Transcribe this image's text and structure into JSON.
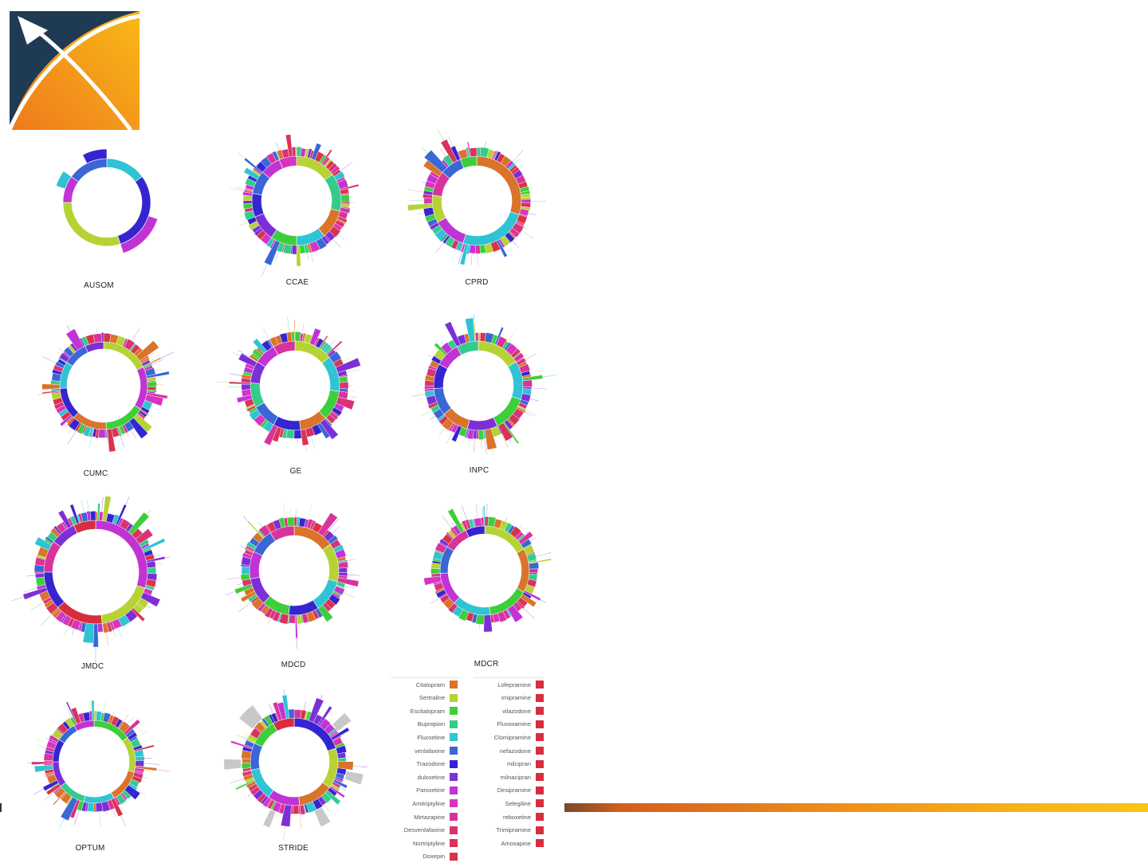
{
  "logo": {
    "name": "logo-icon",
    "colors": {
      "navy": "#1f3a53",
      "orange": "#ee8c1d",
      "yellow": "#f9b917"
    }
  },
  "chart_data": {
    "type": "sunburst",
    "title": "",
    "panels": [
      {
        "name": "AUSOM",
        "inner": [
          {
            "drug": "Fluoxetine",
            "value": 15
          },
          {
            "drug": "Trazodone",
            "value": 30
          },
          {
            "drug": "Sertraline",
            "value": 30
          },
          {
            "drug": "Paroxetine",
            "value": 10
          },
          {
            "drug": "venlafaxine",
            "value": 15
          }
        ]
      },
      {
        "name": "CCAE",
        "inner": [
          {
            "drug": "Sertraline",
            "value": 14
          },
          {
            "drug": "Bupropion",
            "value": 13
          },
          {
            "drug": "Citalopram",
            "value": 10
          },
          {
            "drug": "Fluoxetine",
            "value": 10
          },
          {
            "drug": "Escitalopram",
            "value": 9
          },
          {
            "drug": "duloxetine",
            "value": 9
          },
          {
            "drug": "Trazodone",
            "value": 8
          },
          {
            "drug": "venlafaxine",
            "value": 8
          },
          {
            "drug": "Paroxetine",
            "value": 7
          },
          {
            "drug": "Amitriptyline",
            "value": 6
          }
        ]
      },
      {
        "name": "CPRD",
        "inner": [
          {
            "drug": "Citalopram",
            "value": 30
          },
          {
            "drug": "Fluoxetine",
            "value": 25
          },
          {
            "drug": "Paroxetine",
            "value": 12
          },
          {
            "drug": "Sertraline",
            "value": 10
          },
          {
            "drug": "Mirtazapine",
            "value": 9
          },
          {
            "drug": "venlafaxine",
            "value": 8
          },
          {
            "drug": "Escitalopram",
            "value": 6
          }
        ]
      },
      {
        "name": "CUMC",
        "inner": [
          {
            "drug": "Sertraline",
            "value": 18
          },
          {
            "drug": "Paroxetine",
            "value": 16
          },
          {
            "drug": "Escitalopram",
            "value": 15
          },
          {
            "drug": "Citalopram",
            "value": 13
          },
          {
            "drug": "Trazodone",
            "value": 12
          },
          {
            "drug": "Fluoxetine",
            "value": 10
          },
          {
            "drug": "venlafaxine",
            "value": 9
          },
          {
            "drug": "duloxetine",
            "value": 7
          }
        ]
      },
      {
        "name": "GE",
        "inner": [
          {
            "drug": "Sertraline",
            "value": 14
          },
          {
            "drug": "Fluoxetine",
            "value": 13
          },
          {
            "drug": "Escitalopram",
            "value": 11
          },
          {
            "drug": "Citalopram",
            "value": 10
          },
          {
            "drug": "Trazodone",
            "value": 10
          },
          {
            "drug": "venlafaxine",
            "value": 9
          },
          {
            "drug": "Bupropion",
            "value": 9
          },
          {
            "drug": "duloxetine",
            "value": 8
          },
          {
            "drug": "Paroxetine",
            "value": 8
          },
          {
            "drug": "Mirtazapine",
            "value": 8
          }
        ]
      },
      {
        "name": "INPC",
        "inner": [
          {
            "drug": "Sertraline",
            "value": 16
          },
          {
            "drug": "Fluoxetine",
            "value": 14
          },
          {
            "drug": "Escitalopram",
            "value": 13
          },
          {
            "drug": "duloxetine",
            "value": 11
          },
          {
            "drug": "Citalopram",
            "value": 10
          },
          {
            "drug": "venlafaxine",
            "value": 10
          },
          {
            "drug": "Trazodone",
            "value": 9
          },
          {
            "drug": "Paroxetine",
            "value": 9
          },
          {
            "drug": "Bupropion",
            "value": 8
          }
        ]
      },
      {
        "name": "JMDC",
        "inner": [
          {
            "drug": "Paroxetine",
            "value": 30
          },
          {
            "drug": "Sertraline",
            "value": 18
          },
          {
            "drug": "Lofepramine",
            "value": 15
          },
          {
            "drug": "Trazodone",
            "value": 12
          },
          {
            "drug": "Mirtazapine",
            "value": 10
          },
          {
            "drug": "duloxetine",
            "value": 8
          },
          {
            "drug": "Fluvoxamine",
            "value": 7
          }
        ]
      },
      {
        "name": "MDCD",
        "inner": [
          {
            "drug": "Citalopram",
            "value": 15
          },
          {
            "drug": "Sertraline",
            "value": 14
          },
          {
            "drug": "Fluoxetine",
            "value": 12
          },
          {
            "drug": "Trazodone",
            "value": 11
          },
          {
            "drug": "Escitalopram",
            "value": 10
          },
          {
            "drug": "duloxetine",
            "value": 10
          },
          {
            "drug": "Paroxetine",
            "value": 10
          },
          {
            "drug": "venlafaxine",
            "value": 9
          },
          {
            "drug": "Mirtazapine",
            "value": 9
          }
        ]
      },
      {
        "name": "MDCR",
        "inner": [
          {
            "drug": "Sertraline",
            "value": 17
          },
          {
            "drug": "Citalopram",
            "value": 16
          },
          {
            "drug": "Escitalopram",
            "value": 15
          },
          {
            "drug": "Fluoxetine",
            "value": 14
          },
          {
            "drug": "Paroxetine",
            "value": 12
          },
          {
            "drug": "venlafaxine",
            "value": 10
          },
          {
            "drug": "Mirtazapine",
            "value": 9
          },
          {
            "drug": "Trazodone",
            "value": 7
          }
        ]
      },
      {
        "name": "OPTUM",
        "inner": [
          {
            "drug": "Escitalopram",
            "value": 15
          },
          {
            "drug": "Sertraline",
            "value": 14
          },
          {
            "drug": "Citalopram",
            "value": 13
          },
          {
            "drug": "Fluoxetine",
            "value": 12
          },
          {
            "drug": "Bupropion",
            "value": 11
          },
          {
            "drug": "duloxetine",
            "value": 10
          },
          {
            "drug": "Trazodone",
            "value": 9
          },
          {
            "drug": "venlafaxine",
            "value": 8
          },
          {
            "drug": "Paroxetine",
            "value": 8
          }
        ]
      },
      {
        "name": "STRIDE",
        "inner": [
          {
            "drug": "Trazodone",
            "value": 20
          },
          {
            "drug": "Sertraline",
            "value": 15
          },
          {
            "drug": "Citalopram",
            "value": 13
          },
          {
            "drug": "Paroxetine",
            "value": 12
          },
          {
            "drug": "Fluoxetine",
            "value": 12
          },
          {
            "drug": "venlafaxine",
            "value": 10
          },
          {
            "drug": "Escitalopram",
            "value": 10
          },
          {
            "drug": "Lofepramine",
            "value": 8
          }
        ]
      }
    ],
    "legend": [
      {
        "label": "Citalopram",
        "color": "#d9742a"
      },
      {
        "label": "Sertraline",
        "color": "#b5d334"
      },
      {
        "label": "Escitalopram",
        "color": "#3ccf3a"
      },
      {
        "label": "Bupropion",
        "color": "#35cc8a"
      },
      {
        "label": "Fluoxetine",
        "color": "#2fc3d3"
      },
      {
        "label": "venlafaxine",
        "color": "#3a66d6"
      },
      {
        "label": "Trazodone",
        "color": "#3525d0"
      },
      {
        "label": "duloxetine",
        "color": "#7c2fd6"
      },
      {
        "label": "Paroxetine",
        "color": "#c233d6"
      },
      {
        "label": "Amitriptyline",
        "color": "#d833c2"
      },
      {
        "label": "Mirtazapine",
        "color": "#d8339c"
      },
      {
        "label": "Desvenlafaxine",
        "color": "#d83375"
      },
      {
        "label": "Nortriptyline",
        "color": "#d8335a"
      },
      {
        "label": "Doxepin",
        "color": "#d83348"
      },
      {
        "label": "Lofepramine",
        "color": "#d82d3e"
      },
      {
        "label": "Imipramine",
        "color": "#d82d3e"
      },
      {
        "label": "vilazodone",
        "color": "#d82d3e"
      },
      {
        "label": "Fluvoxamine",
        "color": "#d82d3e"
      },
      {
        "label": "Clomipramine",
        "color": "#d82d3e"
      },
      {
        "label": "nefazodone",
        "color": "#d82d3e"
      },
      {
        "label": "milcipran",
        "color": "#d82d3e"
      },
      {
        "label": "milnacipran",
        "color": "#d82d3e"
      },
      {
        "label": "Desipramine",
        "color": "#d82d3e"
      },
      {
        "label": "Selegiline",
        "color": "#d82d3e"
      },
      {
        "label": "reboxetine",
        "color": "#d82d3e"
      },
      {
        "label": "Trimipramine",
        "color": "#d82d3e"
      },
      {
        "label": "Amoxapine",
        "color": "#d82d3e"
      }
    ],
    "legend_placement": "bottom-right of chart grid",
    "grid": false
  },
  "footer": {
    "bar_colors": [
      "#7a4a2a",
      "#ef8b1c",
      "#fbc417"
    ]
  }
}
